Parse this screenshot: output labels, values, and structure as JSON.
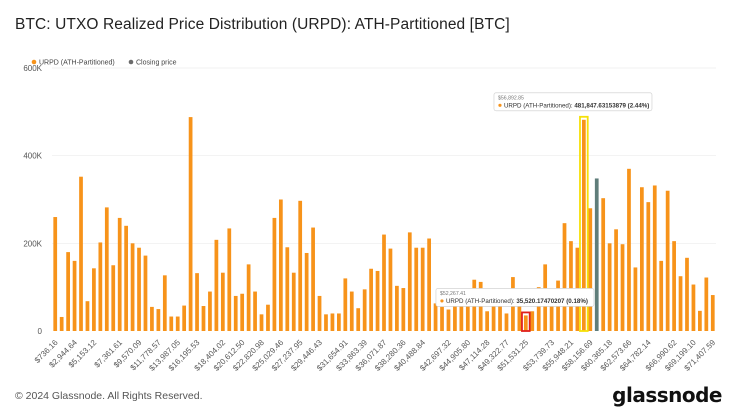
{
  "title": "BTC: UTXO Realized Price Distribution (URPD): ATH-Partitioned [BTC]",
  "footer": "© 2024 Glassnode. All Rights Reserved.",
  "brand": "glassnode",
  "colors": {
    "bar": "#f7931a",
    "closing": "#5f7d7a",
    "highlight_yellow": "#f5e10a",
    "highlight_red": "#e0201b"
  },
  "chart_data": {
    "type": "bar",
    "legend": [
      {
        "name": "URPD (ATH-Partitioned)",
        "color": "#f7931a"
      },
      {
        "name": "Closing price",
        "color": "#6b6b6b"
      }
    ],
    "ylim": [
      0,
      600000
    ],
    "y_ticks": [
      "0",
      "200K",
      "400K",
      "600K"
    ],
    "x_tick_labels": [
      "$736.16",
      "$2,944.64",
      "$5,153.12",
      "$7,361.61",
      "$9,570.09",
      "$11,778.57",
      "$13,987.05",
      "$16,195.53",
      "$18,404.02",
      "$20,612.50",
      "$22,820.98",
      "$25,029.46",
      "$27,237.95",
      "$29,446.43",
      "$31,654.91",
      "$33,863.39",
      "$36,071.87",
      "$38,280.36",
      "$40,488.84",
      "$42,697.32",
      "$44,905.80",
      "$47,114.28",
      "$49,322.77",
      "$51,531.25",
      "$53,739.73",
      "$55,948.21",
      "$58,156.69",
      "$60,365.18",
      "$62,573.66",
      "$64,782.14",
      "$66,990.62",
      "$69,199.10",
      "$71,407.59"
    ],
    "values": [
      260000,
      32000,
      180000,
      160000,
      352000,
      68000,
      143000,
      202000,
      282000,
      150000,
      258000,
      240000,
      200000,
      190000,
      172000,
      55000,
      50000,
      127000,
      33000,
      33000,
      58000,
      488000,
      132000,
      57000,
      90000,
      208000,
      133000,
      234000,
      80000,
      85000,
      152000,
      90000,
      38000,
      60000,
      258000,
      300000,
      191000,
      133000,
      297000,
      178000,
      236000,
      80000,
      38000,
      40000,
      40000,
      120000,
      90000,
      52000,
      95000,
      142000,
      137000,
      220000,
      188000,
      103000,
      98000,
      225000,
      190000,
      190000,
      211000,
      63000,
      55000,
      49000,
      75000,
      85000,
      56000,
      117000,
      112000,
      45000,
      80000,
      86000,
      40000,
      123000,
      82000,
      35520,
      45000,
      100000,
      152000,
      70000,
      115000,
      246000,
      205000,
      190000,
      481847,
      280000,
      348000,
      303000,
      200000,
      232000,
      198000,
      370000,
      145000,
      328000,
      294000,
      332000,
      160000,
      320000,
      205000,
      125000,
      167000,
      106000,
      46000,
      122000,
      82000
    ],
    "closing_price_bin_index": 84,
    "highlights": [
      {
        "bin_index": 82,
        "color": "yellow",
        "tooltip_price": "$56,892.85",
        "tooltip_label": "URPD (ATH-Partitioned):",
        "tooltip_value": "481,847.63153879 (2.44%)"
      },
      {
        "bin_index": 73,
        "color": "red",
        "tooltip_price": "$52,267.41",
        "tooltip_label": "URPD (ATH-Partitioned):",
        "tooltip_value": "35,520.17470207 (0.18%)"
      }
    ]
  }
}
